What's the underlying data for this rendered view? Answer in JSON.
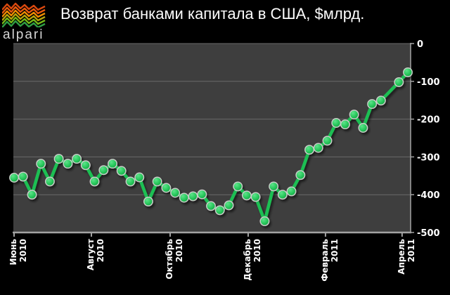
{
  "header": {
    "logo_text": "alpari",
    "title": "Возврат банками капитала в США, $млрд."
  },
  "chart_data": {
    "type": "line",
    "title": "Возврат банками капитала в США, $млрд.",
    "unit": "$млрд",
    "page_bg": "#000000",
    "plot_bg": "#3e3e3e",
    "grid": "horizontal",
    "legend": "none",
    "ylim": [
      -500,
      0
    ],
    "y_ticks": [
      0,
      -100,
      -200,
      -300,
      -400,
      -500
    ],
    "x_frequency": "weekly",
    "x_ticks": [
      {
        "month": "Июнь",
        "year": "2010",
        "week": 0
      },
      {
        "month": "Август",
        "year": "2010",
        "week": 8.64
      },
      {
        "month": "Октябрь",
        "year": "2010",
        "week": 17.44
      },
      {
        "month": "Декабрь",
        "year": "2010",
        "week": 26.16
      },
      {
        "month": "Февраль",
        "year": "2011",
        "week": 34.8
      },
      {
        "month": "Апрель",
        "year": "2011",
        "week": 43.36
      }
    ],
    "series": [
      {
        "name": "Возврат банками капитала в США",
        "color": "#1fbf53",
        "marker_fill": "#29c95d",
        "marker_rim": "#c7cdc7",
        "values": [
          -355,
          -352,
          -400,
          -318,
          -365,
          -305,
          -318,
          -305,
          -322,
          -365,
          -335,
          -318,
          -337,
          -365,
          -354,
          -418,
          -365,
          -382,
          -395,
          -408,
          -404,
          -399,
          -430,
          -441,
          -428,
          -378,
          -402,
          -406,
          -470,
          -378,
          -400,
          -391,
          -348,
          -281,
          -276,
          -257,
          -210,
          -214,
          -188,
          -223,
          -160,
          -151,
          null,
          -102,
          -76
        ]
      }
    ]
  }
}
